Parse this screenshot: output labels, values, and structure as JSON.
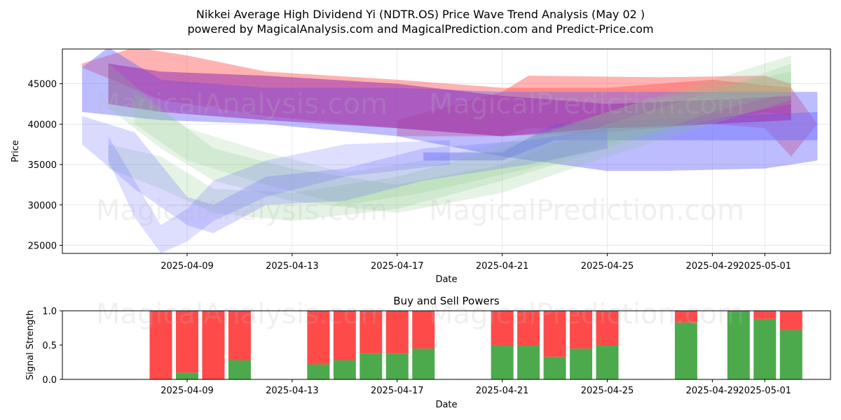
{
  "figure": {
    "title_line1": "Nikkei Average High Dividend Yi (NDTR.OS) Price Wave Trend Analysis (May 02 )",
    "title_line2": "powered by MagicalAnalysis.com and MagicalPrediction.com and Predict-Price.com",
    "watermarks": [
      "MagicalAnalysis.com",
      "MagicalPrediction.com"
    ]
  },
  "chart_data": [
    {
      "type": "area",
      "title": "",
      "xlabel": "Date",
      "ylabel": "Price",
      "x_ticks": [
        "2025-04-09",
        "2025-04-13",
        "2025-04-17",
        "2025-04-21",
        "2025-04-25",
        "2025-04-29",
        "2025-05-01"
      ],
      "y_ticks": [
        25000,
        30000,
        35000,
        40000,
        45000
      ],
      "xlim": [
        "2025-04-05",
        "2025-05-03"
      ],
      "ylim": [
        24000,
        49300
      ],
      "grid": true,
      "colors": {
        "red": "#ff5555",
        "blue": "#6a6aff",
        "green": "#88c888",
        "purple": "#9b30b0"
      },
      "bands": [
        {
          "color": "red",
          "opacity": 0.45,
          "upper": [
            [
              "2025-04-05",
              47500
            ],
            [
              "2025-04-07",
              49500
            ],
            [
              "2025-04-09",
              48500
            ],
            [
              "2025-04-12",
              46500
            ],
            [
              "2025-04-17",
              45500
            ],
            [
              "2025-04-21",
              44500
            ],
            [
              "2025-04-25",
              44500
            ],
            [
              "2025-04-29",
              45500
            ],
            [
              "2025-05-02",
              44500
            ],
            [
              "2025-05-03",
              40000
            ]
          ],
          "lower": [
            [
              "2025-05-03",
              40000
            ],
            [
              "2025-05-02",
              36000
            ],
            [
              "2025-05-01",
              39500
            ],
            [
              "2025-04-29",
              40000
            ],
            [
              "2025-04-25",
              39000
            ],
            [
              "2025-04-21",
              38500
            ],
            [
              "2025-04-17",
              39500
            ],
            [
              "2025-04-12",
              41000
            ],
            [
              "2025-04-08",
              43000
            ],
            [
              "2025-04-05",
              47000
            ]
          ]
        },
        {
          "color": "red",
          "opacity": 0.45,
          "upper": [
            [
              "2025-04-17",
              40500
            ],
            [
              "2025-04-21",
              44000
            ],
            [
              "2025-04-22",
              46000
            ],
            [
              "2025-04-27",
              45800
            ],
            [
              "2025-05-01",
              46000
            ],
            [
              "2025-05-02",
              45000
            ]
          ],
          "lower": [
            [
              "2025-05-02",
              41000
            ],
            [
              "2025-05-01",
              41500
            ],
            [
              "2025-04-27",
              39500
            ],
            [
              "2025-04-22",
              39500
            ],
            [
              "2025-04-21",
              38500
            ],
            [
              "2025-04-17",
              38500
            ]
          ]
        },
        {
          "color": "blue",
          "opacity": 0.45,
          "upper": [
            [
              "2025-04-05",
              47000
            ],
            [
              "2025-04-06",
              49500
            ],
            [
              "2025-04-08",
              45500
            ],
            [
              "2025-04-12",
              44500
            ],
            [
              "2025-04-17",
              44500
            ],
            [
              "2025-04-21",
              44000
            ],
            [
              "2025-04-25",
              44000
            ],
            [
              "2025-04-29",
              44000
            ],
            [
              "2025-05-03",
              44000
            ]
          ],
          "lower": [
            [
              "2025-05-03",
              35500
            ],
            [
              "2025-05-01",
              34500
            ],
            [
              "2025-04-27",
              34200
            ],
            [
              "2025-04-25",
              34200
            ],
            [
              "2025-04-21",
              36000
            ],
            [
              "2025-04-17",
              38500
            ],
            [
              "2025-04-12",
              40000
            ],
            [
              "2025-04-08",
              40500
            ],
            [
              "2025-04-05",
              41500
            ]
          ]
        },
        {
          "color": "blue",
          "opacity": 0.45,
          "upper": [
            [
              "2025-04-18",
              36500
            ],
            [
              "2025-04-21",
              36500
            ],
            [
              "2025-04-23",
              40000
            ],
            [
              "2025-05-03",
              41500
            ]
          ],
          "lower": [
            [
              "2025-05-03",
              38000
            ],
            [
              "2025-04-23",
              38000
            ],
            [
              "2025-04-21",
              35500
            ],
            [
              "2025-04-18",
              35500
            ]
          ]
        },
        {
          "color": "purple",
          "opacity": 0.55,
          "upper": [
            [
              "2025-04-06",
              47500
            ],
            [
              "2025-04-08",
              46500
            ],
            [
              "2025-04-12",
              46000
            ],
            [
              "2025-04-17",
              45000
            ],
            [
              "2025-04-21",
              43500
            ],
            [
              "2025-04-25",
              42500
            ],
            [
              "2025-04-29",
              43000
            ],
            [
              "2025-05-02",
              43500
            ]
          ],
          "lower": [
            [
              "2025-05-02",
              40500
            ],
            [
              "2025-04-29",
              40000
            ],
            [
              "2025-04-25",
              39500
            ],
            [
              "2025-04-21",
              38500
            ],
            [
              "2025-04-17",
              39500
            ],
            [
              "2025-04-12",
              40500
            ],
            [
              "2025-04-08",
              41500
            ],
            [
              "2025-04-06",
              42500
            ]
          ]
        },
        {
          "color": "green",
          "opacity": 0.22,
          "upper": [
            [
              "2025-04-06",
              37500
            ],
            [
              "2025-04-08",
              36000
            ],
            [
              "2025-04-10",
              32000
            ],
            [
              "2025-04-13",
              31500
            ],
            [
              "2025-04-17",
              33500
            ],
            [
              "2025-04-21",
              37000
            ],
            [
              "2025-04-25",
              41500
            ],
            [
              "2025-04-29",
              45500
            ],
            [
              "2025-05-02",
              48500
            ]
          ],
          "lower": [
            [
              "2025-05-02",
              44000
            ],
            [
              "2025-04-29",
              41500
            ],
            [
              "2025-04-25",
              37000
            ],
            [
              "2025-04-21",
              33000
            ],
            [
              "2025-04-17",
              29500
            ],
            [
              "2025-04-13",
              28000
            ],
            [
              "2025-04-10",
              29000
            ],
            [
              "2025-04-08",
              32000
            ],
            [
              "2025-04-06",
              34500
            ]
          ]
        },
        {
          "color": "green",
          "opacity": 0.22,
          "upper": [
            [
              "2025-04-06",
              47500
            ],
            [
              "2025-04-08",
              42000
            ],
            [
              "2025-04-10",
              37000
            ],
            [
              "2025-04-13",
              34500
            ],
            [
              "2025-04-17",
              32500
            ],
            [
              "2025-04-21",
              35000
            ],
            [
              "2025-04-25",
              40000
            ],
            [
              "2025-04-29",
              44000
            ],
            [
              "2025-05-02",
              47500
            ]
          ],
          "lower": [
            [
              "2025-05-02",
              43000
            ],
            [
              "2025-04-29",
              40000
            ],
            [
              "2025-04-25",
              36000
            ],
            [
              "2025-04-21",
              31500
            ],
            [
              "2025-04-17",
              29000
            ],
            [
              "2025-04-13",
              30500
            ],
            [
              "2025-04-10",
              33000
            ],
            [
              "2025-04-08",
              37000
            ],
            [
              "2025-04-06",
              42000
            ]
          ]
        },
        {
          "color": "green",
          "opacity": 0.2,
          "upper": [
            [
              "2025-04-07",
              44000
            ],
            [
              "2025-04-09",
              39500
            ],
            [
              "2025-04-12",
              36500
            ],
            [
              "2025-04-15",
              34000
            ],
            [
              "2025-04-18",
              35500
            ],
            [
              "2025-04-22",
              38500
            ],
            [
              "2025-04-26",
              42500
            ],
            [
              "2025-05-02",
              46500
            ]
          ],
          "lower": [
            [
              "2025-05-02",
              42500
            ],
            [
              "2025-04-26",
              38500
            ],
            [
              "2025-04-22",
              34500
            ],
            [
              "2025-04-18",
              31500
            ],
            [
              "2025-04-15",
              30000
            ],
            [
              "2025-04-12",
              32500
            ],
            [
              "2025-04-09",
              35500
            ],
            [
              "2025-04-07",
              40000
            ]
          ]
        },
        {
          "color": "blue",
          "opacity": 0.25,
          "upper": [
            [
              "2025-04-05",
              41000
            ],
            [
              "2025-04-07",
              39000
            ],
            [
              "2025-04-09",
              31000
            ],
            [
              "2025-04-10",
              30000
            ],
            [
              "2025-04-12",
              33500
            ],
            [
              "2025-04-15",
              34500
            ],
            [
              "2025-04-18",
              37000
            ],
            [
              "2025-04-22",
              38000
            ],
            [
              "2025-04-25",
              39500
            ]
          ],
          "lower": [
            [
              "2025-04-25",
              37000
            ],
            [
              "2025-04-22",
              35000
            ],
            [
              "2025-04-18",
              33000
            ],
            [
              "2025-04-15",
              30500
            ],
            [
              "2025-04-12",
              30000
            ],
            [
              "2025-04-10",
              26500
            ],
            [
              "2025-04-09",
              27500
            ],
            [
              "2025-04-07",
              32000
            ],
            [
              "2025-04-05",
              37500
            ]
          ]
        },
        {
          "color": "blue",
          "opacity": 0.22,
          "upper": [
            [
              "2025-04-06",
              38500
            ],
            [
              "2025-04-07",
              33000
            ],
            [
              "2025-04-08",
              27500
            ],
            [
              "2025-04-09",
              29500
            ],
            [
              "2025-04-10",
              33000
            ],
            [
              "2025-04-12",
              35500
            ],
            [
              "2025-04-15",
              37500
            ],
            [
              "2025-04-19",
              38000
            ]
          ],
          "lower": [
            [
              "2025-04-19",
              35000
            ],
            [
              "2025-04-15",
              33500
            ],
            [
              "2025-04-12",
              31000
            ],
            [
              "2025-04-10",
              28000
            ],
            [
              "2025-04-09",
              25500
            ],
            [
              "2025-04-08",
              24000
            ],
            [
              "2025-04-07",
              28500
            ],
            [
              "2025-04-06",
              35500
            ]
          ]
        }
      ]
    },
    {
      "type": "bar",
      "title": "Buy and Sell Powers",
      "xlabel": "Date",
      "ylabel": "Signal Strength",
      "x_ticks": [
        "2025-04-09",
        "2025-04-13",
        "2025-04-17",
        "2025-04-21",
        "2025-04-25",
        "2025-04-29",
        "2025-05-01"
      ],
      "y_ticks": [
        "0.0",
        "0.5",
        "1.0"
      ],
      "ylim": [
        0,
        1
      ],
      "grid": false,
      "colors": {
        "buy": "#4caa4c",
        "sell": "#ff4a4a"
      },
      "series": [
        {
          "name": "Buy",
          "values": [
            0.0,
            0.1,
            0.0,
            0.28,
            0.22,
            0.28,
            0.38,
            0.38,
            0.45,
            0.5,
            0.5,
            0.33,
            0.45,
            0.5,
            0.83,
            1.0,
            0.88,
            0.72
          ]
        },
        {
          "name": "Sell",
          "values": [
            1.0,
            0.9,
            1.0,
            0.72,
            0.78,
            0.72,
            0.62,
            0.62,
            0.55,
            0.5,
            0.5,
            0.67,
            0.55,
            0.5,
            0.17,
            0.0,
            0.12,
            0.28
          ]
        }
      ],
      "categories": [
        "2025-04-08",
        "2025-04-09",
        "2025-04-10",
        "2025-04-11",
        "2025-04-14",
        "2025-04-15",
        "2025-04-16",
        "2025-04-17",
        "2025-04-18",
        "2025-04-21",
        "2025-04-22",
        "2025-04-23",
        "2025-04-24",
        "2025-04-25",
        "2025-04-28",
        "2025-04-30",
        "2025-05-01",
        "2025-05-02"
      ]
    }
  ]
}
